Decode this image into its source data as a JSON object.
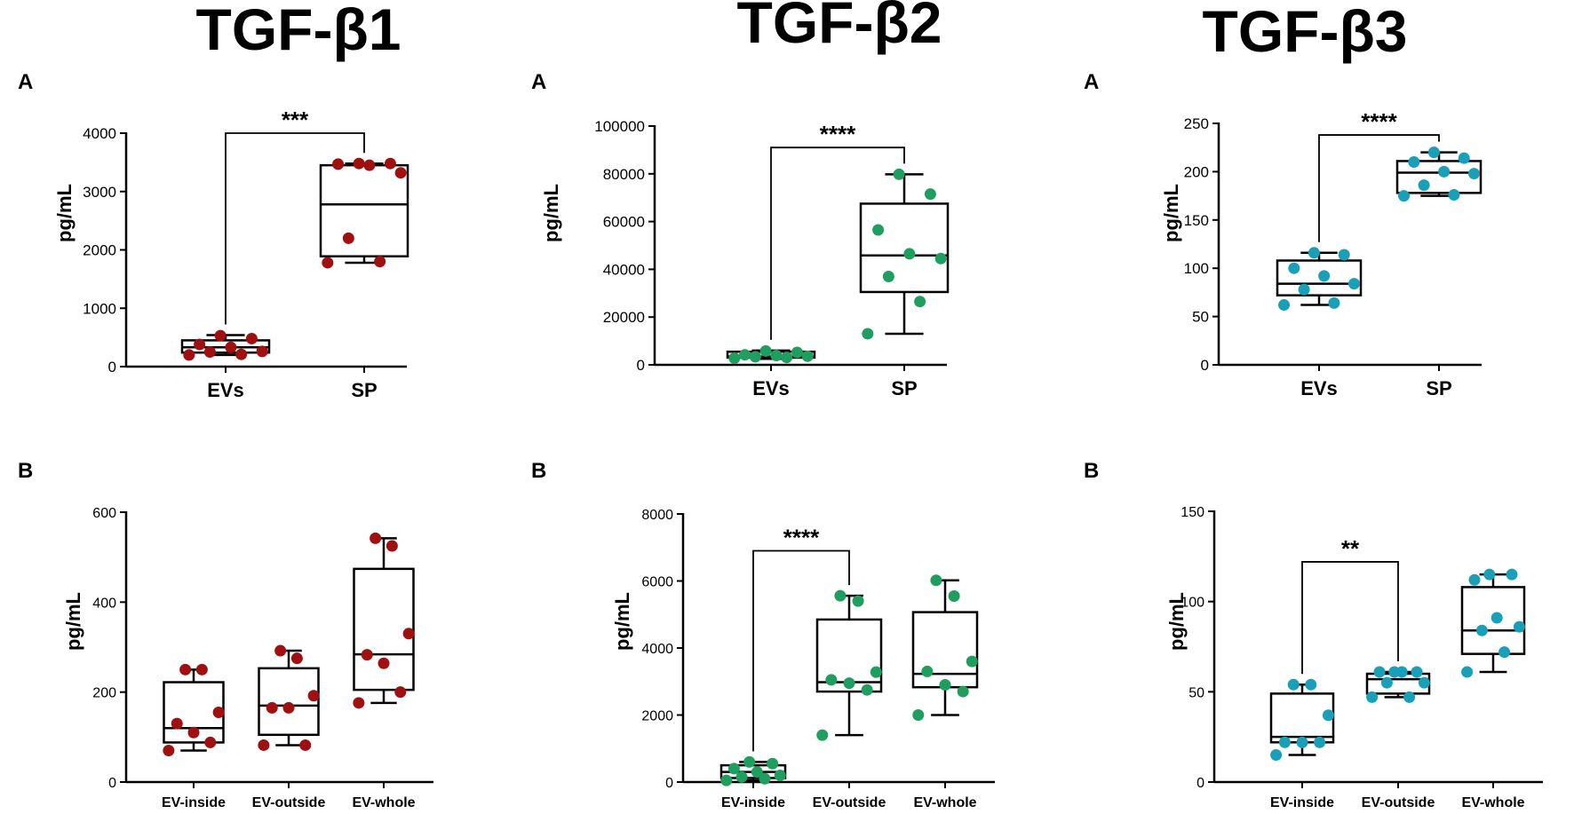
{
  "colors": {
    "tgf_b1": "#a01010",
    "tgf_b2": "#1f9e60",
    "tgf_b3": "#1a9fb8",
    "axis": "#000000"
  },
  "columns": [
    {
      "title": "TGF-β1",
      "color_key": "tgf_b1"
    },
    {
      "title": "TGF-β2",
      "color_key": "tgf_b2"
    },
    {
      "title": "TGF-β3",
      "color_key": "tgf_b3"
    }
  ],
  "chart_data": [
    {
      "id": "b1A",
      "type": "box",
      "panel_letter": "A",
      "column": "TGF-β1",
      "ylabel": "pg/mL",
      "ylim": [
        0,
        4000
      ],
      "yticks": [
        0,
        1000,
        2000,
        3000,
        4000
      ],
      "categories": [
        "EVs",
        "SP"
      ],
      "boxes": [
        {
          "min": 200,
          "q1": 240,
          "median": 330,
          "q3": 450,
          "max": 540
        },
        {
          "min": 1780,
          "q1": 1890,
          "median": 2780,
          "q3": 3450,
          "max": 3480
        }
      ],
      "points": [
        [
          200,
          210,
          250,
          260,
          330,
          380,
          480,
          530
        ],
        [
          1780,
          1800,
          2200,
          3320,
          3450,
          3470,
          3480,
          3480
        ]
      ],
      "significance": [
        {
          "from": 0,
          "to": 1,
          "label": "***",
          "y": 4000
        }
      ]
    },
    {
      "id": "b2A",
      "type": "box",
      "panel_letter": "A",
      "column": "TGF-β2",
      "ylabel": "pg/mL",
      "ylim": [
        0,
        100000
      ],
      "yticks": [
        0,
        20000,
        40000,
        60000,
        80000,
        100000
      ],
      "categories": [
        "EVs",
        "SP"
      ],
      "boxes": [
        {
          "min": 2500,
          "q1": 3000,
          "median": 3500,
          "q3": 5500,
          "max": 6000
        },
        {
          "min": 13000,
          "q1": 30500,
          "median": 45800,
          "q3": 67500,
          "max": 79800
        }
      ],
      "points": [
        [
          2800,
          3100,
          3400,
          3600,
          3900,
          4200,
          5200,
          5800
        ],
        [
          13000,
          26500,
          37000,
          44500,
          46500,
          56500,
          71500,
          79800
        ]
      ],
      "significance": [
        {
          "from": 0,
          "to": 1,
          "label": "****",
          "y": 91000
        }
      ]
    },
    {
      "id": "b3A",
      "type": "box",
      "panel_letter": "A",
      "column": "TGF-β3",
      "ylabel": "pg/mL",
      "ylim": [
        0,
        250
      ],
      "yticks": [
        0,
        50,
        100,
        150,
        200,
        250
      ],
      "categories": [
        "EVs",
        "SP"
      ],
      "boxes": [
        {
          "min": 62,
          "q1": 72,
          "median": 84,
          "q3": 108,
          "max": 116
        },
        {
          "min": 175,
          "q1": 178,
          "median": 199,
          "q3": 211,
          "max": 220
        }
      ],
      "points": [
        [
          62,
          64,
          78,
          84,
          92,
          100,
          114,
          116
        ],
        [
          175,
          176,
          186,
          198,
          200,
          210,
          214,
          220
        ]
      ],
      "significance": [
        {
          "from": 0,
          "to": 1,
          "label": "****",
          "y": 238
        }
      ]
    },
    {
      "id": "b1B",
      "type": "box",
      "panel_letter": "B",
      "column": "TGF-β1",
      "ylabel": "pg/mL",
      "ylim": [
        0,
        600
      ],
      "yticks": [
        0,
        200,
        400,
        600
      ],
      "categories": [
        "EV-inside",
        "EV-outside",
        "EV-whole"
      ],
      "boxes": [
        {
          "min": 70,
          "q1": 88,
          "median": 120,
          "q3": 222,
          "max": 250
        },
        {
          "min": 82,
          "q1": 105,
          "median": 170,
          "q3": 253,
          "max": 292
        },
        {
          "min": 176,
          "q1": 205,
          "median": 284,
          "q3": 474,
          "max": 542
        }
      ],
      "points": [
        [
          70,
          88,
          110,
          130,
          155,
          250,
          250
        ],
        [
          82,
          82,
          165,
          165,
          192,
          275,
          292
        ],
        [
          176,
          200,
          264,
          283,
          330,
          525,
          542
        ]
      ],
      "significance": []
    },
    {
      "id": "b2B",
      "type": "box",
      "panel_letter": "B",
      "column": "TGF-β2",
      "ylabel": "pg/mL",
      "ylim": [
        0,
        8000
      ],
      "yticks": [
        0,
        2000,
        4000,
        6000,
        8000
      ],
      "categories": [
        "EV-inside",
        "EV-outside",
        "EV-whole"
      ],
      "boxes": [
        {
          "min": 50,
          "q1": 120,
          "median": 300,
          "q3": 500,
          "max": 600
        },
        {
          "min": 1400,
          "q1": 2700,
          "median": 2980,
          "q3": 4850,
          "max": 5560
        },
        {
          "min": 2000,
          "q1": 2830,
          "median": 3230,
          "q3": 5070,
          "max": 6020
        }
      ],
      "points": [
        [
          50,
          100,
          150,
          200,
          300,
          400,
          550,
          600
        ],
        [
          1400,
          2750,
          2950,
          3050,
          3280,
          5400,
          5560
        ],
        [
          2000,
          2700,
          2900,
          3300,
          3600,
          5550,
          6020
        ]
      ],
      "significance": [
        {
          "from": 0,
          "to": 1,
          "label": "****",
          "y": 6900
        }
      ]
    },
    {
      "id": "b3B",
      "type": "box",
      "panel_letter": "B",
      "column": "TGF-β3",
      "ylabel": "pg/mL",
      "ylim": [
        0,
        150
      ],
      "yticks": [
        0,
        50,
        100,
        150
      ],
      "categories": [
        "EV-inside",
        "EV-outside",
        "EV-whole"
      ],
      "boxes": [
        {
          "min": 15,
          "q1": 22,
          "median": 25,
          "q3": 49,
          "max": 54
        },
        {
          "min": 47,
          "q1": 49,
          "median": 57,
          "q3": 60,
          "max": 61
        },
        {
          "min": 61,
          "q1": 71,
          "median": 84,
          "q3": 108,
          "max": 115
        }
      ],
      "points": [
        [
          15,
          22,
          22,
          22,
          37,
          54,
          54
        ],
        [
          47,
          47,
          55,
          55,
          61,
          61,
          61,
          61
        ],
        [
          61,
          72,
          84,
          86,
          91,
          112,
          115,
          115
        ]
      ],
      "significance": [
        {
          "from": 0,
          "to": 1,
          "label": "**",
          "y": 122
        }
      ]
    }
  ]
}
